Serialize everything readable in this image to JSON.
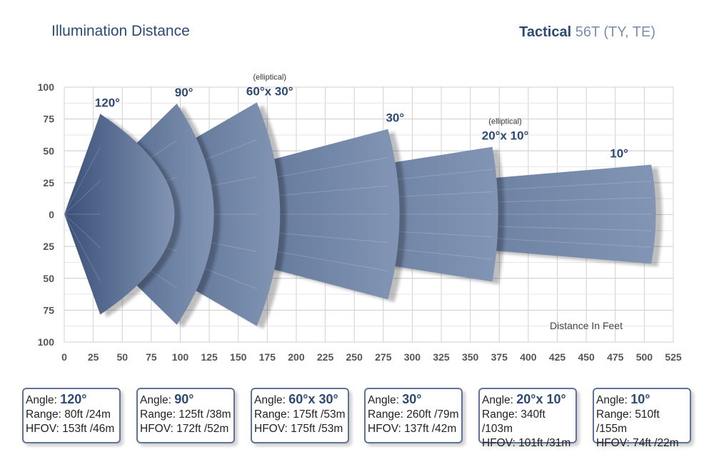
{
  "header": {
    "title": "Illumination Distance",
    "brand": "Tactical",
    "model": "56T (TY, TE)"
  },
  "chart_data": {
    "type": "area",
    "title": "Illumination Distance",
    "xlabel": "Distance In Feet",
    "x_ticks": [
      0,
      25,
      50,
      75,
      100,
      125,
      150,
      175,
      200,
      225,
      250,
      275,
      300,
      325,
      350,
      375,
      400,
      425,
      450,
      475,
      500,
      525
    ],
    "y_ticks": [
      "100",
      "75",
      "50",
      "25",
      "0",
      "25",
      "50",
      "75",
      "100"
    ],
    "xlim": [
      0,
      525
    ],
    "ylim": [
      -100,
      100
    ],
    "grid": true,
    "beams": [
      {
        "label": "120°",
        "note": "",
        "corner_x": 31,
        "half_height": 79,
        "center_range": 95
      },
      {
        "label": "90°",
        "note": "",
        "corner_x": 97,
        "half_height": 87,
        "center_range": 129
      },
      {
        "label": "60°x 30°",
        "note": "(elliptical)",
        "corner_x": 166,
        "half_height": 88,
        "center_range": 186
      },
      {
        "label": "30°",
        "note": "",
        "corner_x": 279,
        "half_height": 67,
        "center_range": 289
      },
      {
        "label": "20°x 10°",
        "note": "(elliptical)",
        "corner_x": 369,
        "half_height": 53,
        "center_range": 374
      },
      {
        "label": "10°",
        "note": "",
        "corner_x": 506,
        "half_height": 39,
        "center_range": 510
      }
    ],
    "colors": {
      "dark": "#3a5078",
      "light": "#8295b4",
      "grid": "#d0d0d0",
      "label": "#2d4a73"
    }
  },
  "specs": [
    {
      "angle_label": "Angle:",
      "angle": "120°",
      "range": "Range: 80ft /24m",
      "hfov": "HFOV: 153ft /46m"
    },
    {
      "angle_label": "Angle:",
      "angle": "90°",
      "range": "Range: 125ft /38m",
      "hfov": "HFOV: 172ft /52m"
    },
    {
      "angle_label": "Angle:",
      "angle": "60°x 30°",
      "range": "Range: 175ft /53m",
      "hfov": "HFOV: 175ft /53m"
    },
    {
      "angle_label": "Angle:",
      "angle": "30°",
      "range": "Range: 260ft /79m",
      "hfov": "HFOV: 137ft /42m"
    },
    {
      "angle_label": "Angle:",
      "angle": "20°x 10°",
      "range": "Range: 340ft /103m",
      "hfov": "HFOV: 101ft /31m"
    },
    {
      "angle_label": "Angle:",
      "angle": "10°",
      "range": "Range: 510ft /155m",
      "hfov": "HFOV: 74ft /22m"
    }
  ]
}
